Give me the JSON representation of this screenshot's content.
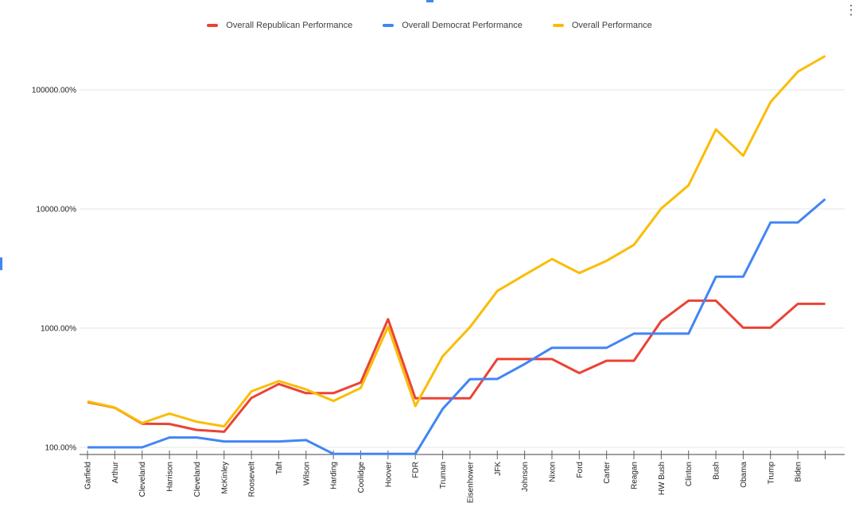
{
  "window": {
    "menu_icon": "⋮"
  },
  "chart_data": {
    "type": "line",
    "title": "",
    "y_scale": "log",
    "grid": true,
    "legend_position": "top",
    "xlabel": "",
    "ylabel": "",
    "y_ticks": [
      {
        "label": "100.00%",
        "value": 100
      },
      {
        "label": "1000.00%",
        "value": 1000
      },
      {
        "label": "10000.00%",
        "value": 10000
      },
      {
        "label": "100000.00%",
        "value": 100000
      }
    ],
    "ylim": [
      87,
      250000
    ],
    "categories": [
      "Garfield",
      "Arthur",
      "Cleveland",
      "Harrison",
      "Cleveland",
      "McKinley",
      "Roosevelt",
      "Taft",
      "Wilson",
      "Harding",
      "Coolidge",
      "Hoover",
      "FDR",
      "Truman",
      "Eisenhower",
      "JFK",
      "Johnson",
      "Nixon",
      "Ford",
      "Carter",
      "Reagan",
      "HW Bush",
      "Clinton",
      "Bush",
      "Obama",
      "Trump",
      "Biden",
      ""
    ],
    "series": [
      {
        "name": "Overall Republican Performance",
        "color": "#ea4335",
        "values": [
          240,
          215,
          158,
          157,
          140,
          135,
          260,
          340,
          285,
          285,
          350,
          1190,
          258,
          258,
          258,
          550,
          550,
          550,
          420,
          533,
          533,
          1150,
          1700,
          1700,
          1010,
          1010,
          1600,
          1600
        ]
      },
      {
        "name": "Overall Democrat Performance",
        "color": "#4285f4",
        "values": [
          100,
          100,
          100,
          121,
          121,
          112,
          112,
          112,
          115,
          88,
          88,
          88,
          88,
          210,
          373,
          375,
          500,
          684,
          684,
          684,
          900,
          900,
          900,
          2700,
          2700,
          7700,
          7700,
          12100
        ]
      },
      {
        "name": "Overall Performance",
        "color": "#fbbc04",
        "values": [
          243,
          216,
          160,
          192,
          164,
          150,
          295,
          360,
          306,
          245,
          315,
          1030,
          222,
          580,
          1020,
          2050,
          2800,
          3800,
          2900,
          3670,
          5000,
          10100,
          15800,
          46500,
          28000,
          79000,
          142000,
          192000
        ]
      }
    ]
  }
}
